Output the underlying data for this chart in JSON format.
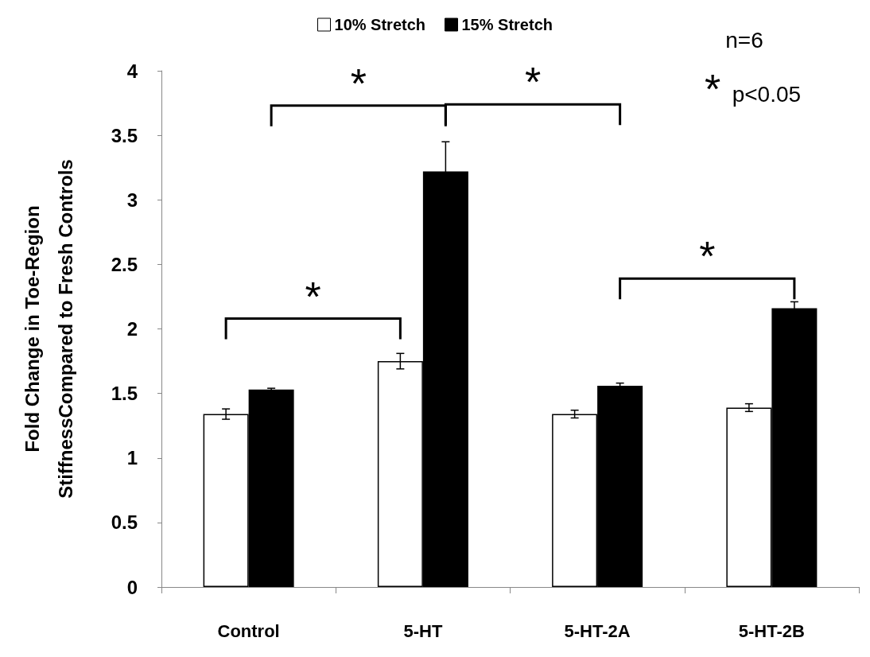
{
  "chart_data": {
    "type": "bar",
    "ylabel": "Fold Change in Toe-Region\nStiffnessCompared to Fresh Controls",
    "categories": [
      "Control",
      "5-HT",
      "5-HT-2A",
      "5-HT-2B"
    ],
    "series": [
      {
        "name": "10% Stretch",
        "color": "#ffffff",
        "values": [
          1.34,
          1.75,
          1.34,
          1.39
        ],
        "errors": [
          0.04,
          0.06,
          0.03,
          0.03
        ]
      },
      {
        "name": "15% Stretch",
        "color": "#000000",
        "values": [
          1.53,
          3.22,
          1.56,
          2.16
        ],
        "errors": [
          0.01,
          0.23,
          0.02,
          0.05
        ]
      }
    ],
    "ylim": [
      0,
      4
    ],
    "yticks": [
      0,
      0.5,
      1,
      1.5,
      2,
      2.5,
      3,
      3.5,
      4
    ],
    "grid": false,
    "legend": "top",
    "annotations": [
      "*",
      "*",
      "*",
      "*",
      "n=6",
      "* p<0.05"
    ]
  }
}
